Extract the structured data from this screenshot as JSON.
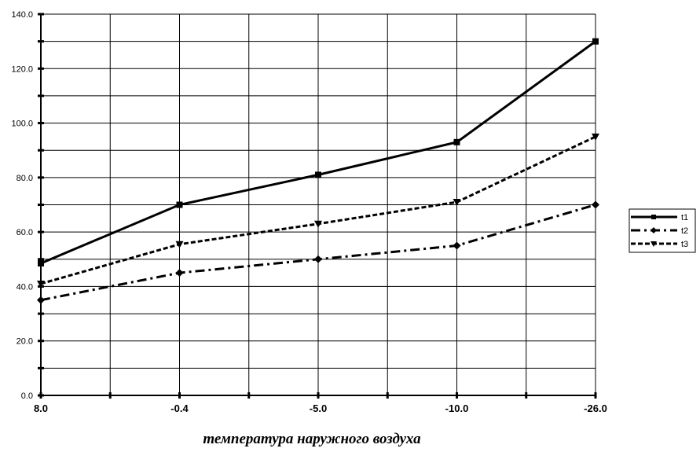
{
  "chart_data": {
    "type": "line",
    "categories": [
      "8.0",
      "-0.4",
      "-5.0",
      "-10.0",
      "-26.0"
    ],
    "series": [
      {
        "name": "t1",
        "values": [
          48.5,
          70,
          81,
          93,
          130
        ],
        "marker": "square",
        "dash": "solid"
      },
      {
        "name": "t2",
        "values": [
          35,
          45,
          50,
          55,
          70
        ],
        "marker": "diamond",
        "dash": "dashdot"
      },
      {
        "name": "t3",
        "values": [
          41,
          55.5,
          63,
          71,
          95
        ],
        "marker": "triangle-down",
        "dash": "dashed"
      }
    ],
    "title": "",
    "xlabel": "температура наружного воздуха",
    "ylabel": "",
    "ylim": [
      0,
      140
    ],
    "yticks": [
      "0.0",
      "20.0",
      "40.0",
      "60.0",
      "80.0",
      "100.0",
      "120.0",
      "140.0"
    ],
    "grid": true,
    "legend_position": "right",
    "line_color": "#000000"
  }
}
